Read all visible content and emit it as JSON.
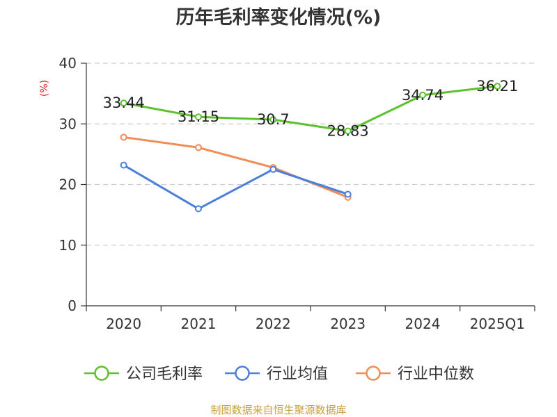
{
  "chart_data": {
    "type": "line",
    "title": "历年毛利率变化情况(%)",
    "ylabel": "(%)",
    "xlabel": "",
    "categories": [
      "2020",
      "2021",
      "2022",
      "2023",
      "2024",
      "2025Q1"
    ],
    "ylim": [
      0,
      40
    ],
    "yticks": [
      0,
      10,
      20,
      30,
      40
    ],
    "grid": "horizontal dashed",
    "legend_position": "bottom",
    "series": [
      {
        "name": "公司毛利率",
        "color": "#5cc12c",
        "values": [
          33.44,
          31.15,
          30.7,
          28.83,
          34.74,
          36.21
        ],
        "labels": [
          "33.44",
          "31.15",
          "30.7",
          "28.83",
          "34.74",
          "36.21"
        ]
      },
      {
        "name": "行业均值",
        "color": "#4a7fdc",
        "values": [
          23.2,
          16.0,
          22.5,
          18.4,
          null,
          null
        ]
      },
      {
        "name": "行业中位数",
        "color": "#f08c55",
        "values": [
          27.8,
          26.1,
          22.8,
          17.9,
          null,
          null
        ]
      }
    ]
  },
  "ylabel_color": "#e02020",
  "source_text": "制图数据来自恒生聚源数据库",
  "source_color": "#c8a040"
}
